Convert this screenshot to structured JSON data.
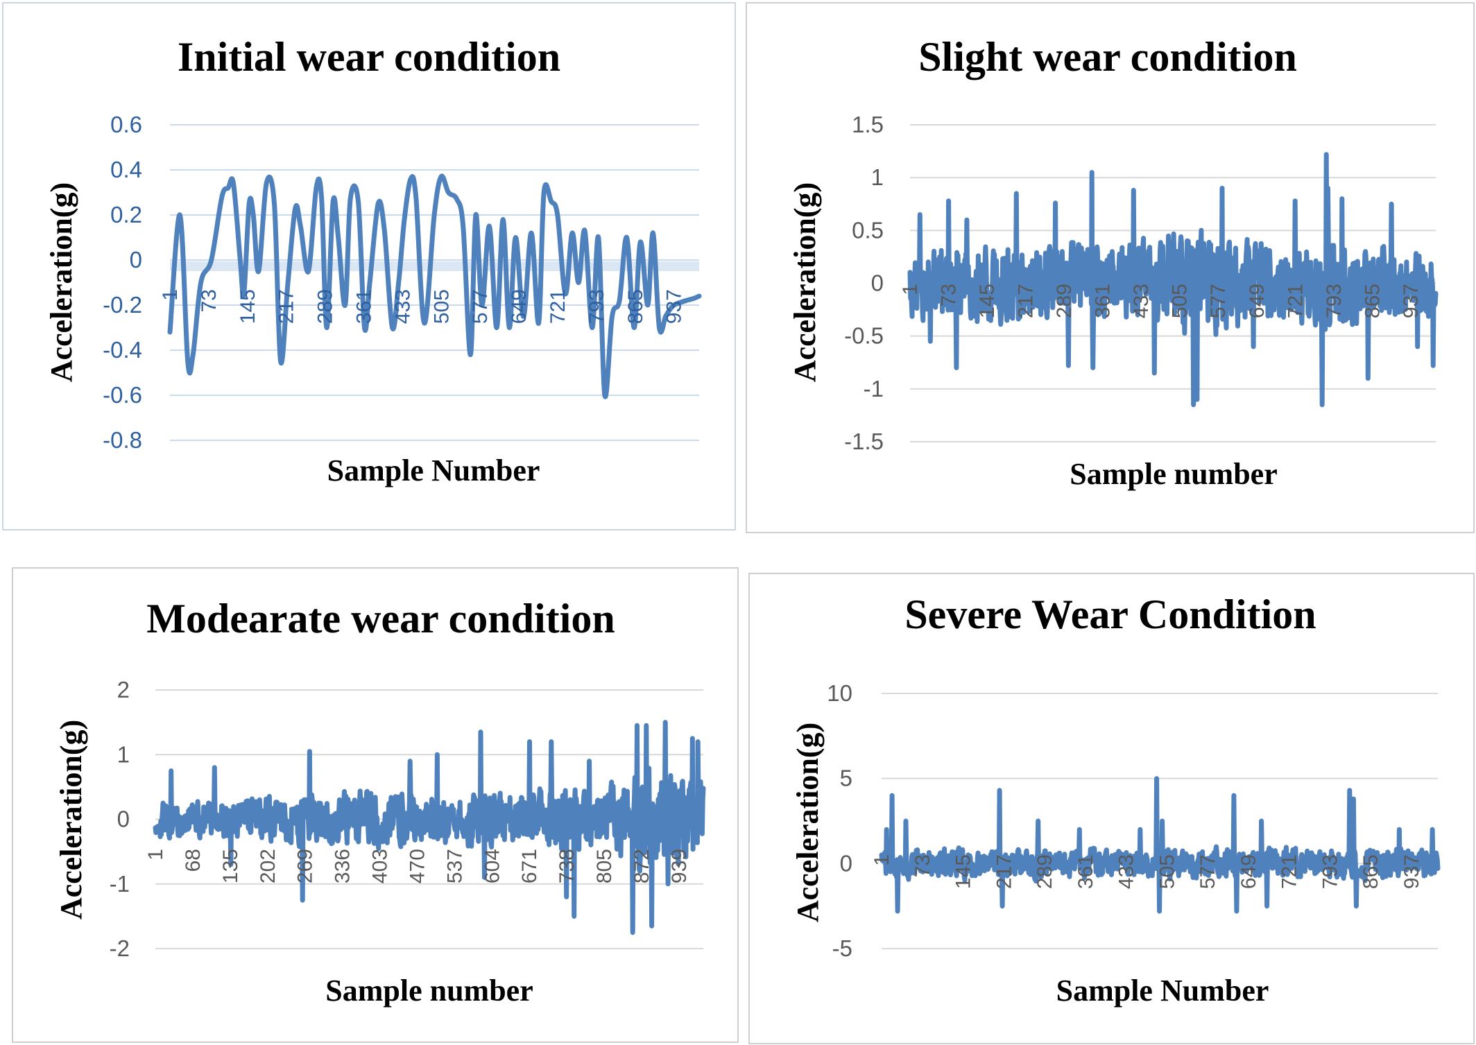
{
  "colors": {
    "series": "#4f81bd",
    "grid": "#d9d9d9",
    "grid_blue": "#c9dbf0",
    "tick_blue": "#2e5f9e",
    "tick_gray": "#595959",
    "zero_band": "#dbe7f5"
  },
  "chart_data": [
    {
      "type": "line",
      "title": "Initial wear condition",
      "xlabel": "Sample Number",
      "ylabel": "Acceleration(g)",
      "ylim": [
        -0.8,
        0.6
      ],
      "yticks": [
        "0.6",
        "0.4",
        "0.2",
        "0",
        "-0.2",
        "-0.4",
        "-0.6",
        "-0.8"
      ],
      "ytick_values": [
        0.6,
        0.4,
        0.2,
        0,
        -0.2,
        -0.4,
        -0.6,
        -0.8
      ],
      "xticks": [
        "1",
        "73",
        "145",
        "217",
        "289",
        "361",
        "433",
        "505",
        "577",
        "649",
        "721",
        "793",
        "865",
        "937"
      ],
      "xlim": [
        1,
        1010
      ],
      "grid": true,
      "legend": "none",
      "tick_color": "blue",
      "series": [
        {
          "style": "smooth",
          "x": [
            1,
            20,
            35,
            45,
            60,
            80,
            100,
            112,
            122,
            135,
            142,
            152,
            160,
            170,
            185,
            200,
            212,
            226,
            240,
            250,
            265,
            280,
            290,
            300,
            312,
            322,
            335,
            345,
            360,
            372,
            382,
            398,
            410,
            425,
            437,
            448,
            460,
            470,
            486,
            505,
            518,
            532,
            548,
            560,
            574,
            584,
            596,
            610,
            624,
            636,
            648,
            660,
            675,
            690,
            704,
            714,
            728,
            740,
            755,
            768,
            780,
            792,
            806,
            818,
            830,
            844,
            858,
            872,
            886,
            898,
            912,
            922,
            934,
            946,
            954,
            962,
            972,
            985,
            1000,
            1010
          ],
          "y": [
            -0.32,
            0.2,
            -0.45,
            -0.42,
            -0.1,
            0.0,
            0.28,
            0.32,
            0.34,
            0.0,
            -0.15,
            0.25,
            0.2,
            -0.05,
            0.34,
            0.25,
            -0.45,
            -0.1,
            0.23,
            0.15,
            -0.05,
            0.32,
            0.28,
            -0.3,
            0.26,
            0.1,
            -0.2,
            0.27,
            0.26,
            -0.3,
            -0.1,
            0.25,
            0.13,
            -0.3,
            -0.1,
            0.18,
            0.36,
            0.28,
            -0.28,
            0.2,
            0.37,
            0.3,
            0.27,
            0.15,
            -0.42,
            0.2,
            -0.2,
            0.15,
            -0.3,
            0.18,
            -0.3,
            0.1,
            -0.25,
            0.12,
            -0.28,
            0.3,
            0.26,
            0.2,
            -0.15,
            0.12,
            -0.1,
            0.13,
            -0.3,
            0.1,
            -0.6,
            -0.25,
            -0.18,
            0.1,
            -0.3,
            0.08,
            -0.2,
            0.12,
            -0.3,
            -0.25,
            -0.22,
            -0.2,
            -0.19,
            -0.18,
            -0.17,
            -0.16
          ]
        }
      ]
    },
    {
      "type": "line",
      "title": "Slight wear condition",
      "xlabel": "Sample number",
      "ylabel": "Acceleration(g)",
      "ylim": [
        -1.5,
        1.5
      ],
      "yticks": [
        "1.5",
        "1",
        "0.5",
        "0",
        "-0.5",
        "-1",
        "-1.5"
      ],
      "ytick_values": [
        1.5,
        1,
        0.5,
        0,
        -0.5,
        -1,
        -1.5
      ],
      "xticks": [
        "1",
        "73",
        "145",
        "217",
        "289",
        "361",
        "433",
        "505",
        "577",
        "649",
        "721",
        "793",
        "865",
        "937"
      ],
      "xlim": [
        1,
        1010
      ],
      "grid": true,
      "legend": "none",
      "tick_color": "gray",
      "series": [
        {
          "style": "noise",
          "n": 1010,
          "seed": 17,
          "env_x": [
            1,
            200,
            400,
            500,
            560,
            620,
            700,
            800,
            860,
            920,
            1010
          ],
          "env_y": [
            0.45,
            0.5,
            0.45,
            0.55,
            0.7,
            0.55,
            0.45,
            0.6,
            0.5,
            0.45,
            0.4
          ],
          "spikes_x": [
            20,
            40,
            75,
            90,
            110,
            205,
            280,
            305,
            350,
            352,
            430,
            470,
            545,
            552,
            600,
            660,
            740,
            792,
            800,
            803,
            830,
            880,
            925,
            975,
            1005
          ],
          "spikes_y": [
            0.65,
            -0.55,
            0.78,
            -0.8,
            0.6,
            0.85,
            0.76,
            -0.78,
            1.05,
            -0.8,
            0.88,
            -0.85,
            -1.15,
            -1.1,
            0.9,
            -0.6,
            0.78,
            -1.15,
            1.22,
            0.9,
            0.8,
            -0.9,
            0.75,
            -0.6,
            -0.78
          ]
        }
      ]
    },
    {
      "type": "line",
      "title": "Modearate wear condition",
      "xlabel": "Sample number",
      "ylabel": "Acceleration(g)",
      "ylim": [
        -2,
        2
      ],
      "yticks": [
        "2",
        "1",
        "0",
        "-1",
        "-2"
      ],
      "ytick_values": [
        2,
        1,
        0,
        -1,
        -2
      ],
      "xticks": [
        "1",
        "68",
        "135",
        "202",
        "269",
        "336",
        "403",
        "470",
        "537",
        "604",
        "671",
        "738",
        "805",
        "872",
        "939"
      ],
      "xlim": [
        1,
        1010
      ],
      "grid": true,
      "legend": "none",
      "tick_color": "gray",
      "series": [
        {
          "style": "noise",
          "n": 1010,
          "seed": 29,
          "env_x": [
            1,
            100,
            250,
            400,
            550,
            700,
            850,
            900,
            950,
            1010
          ],
          "env_y": [
            0.35,
            0.4,
            0.45,
            0.55,
            0.5,
            0.6,
            0.65,
            0.9,
            0.9,
            0.8
          ],
          "spikes_x": [
            30,
            110,
            140,
            272,
            285,
            470,
            520,
            600,
            607,
            690,
            730,
            758,
            772,
            800,
            880,
            888,
            905,
            915,
            940,
            945,
            990,
            1000
          ],
          "spikes_y": [
            0.75,
            0.8,
            -0.7,
            -1.25,
            1.05,
            0.9,
            1.0,
            1.35,
            -0.9,
            1.2,
            1.2,
            -1.2,
            -1.5,
            0.9,
            -1.75,
            1.45,
            1.45,
            -1.65,
            1.5,
            -1.0,
            1.25,
            1.2
          ]
        }
      ]
    },
    {
      "type": "line",
      "title": "Severe Wear Condition",
      "xlabel": "Sample Number",
      "ylabel": "Acceleration(g)",
      "ylim": [
        -5,
        10
      ],
      "yticks": [
        "10",
        "5",
        "0",
        "-5"
      ],
      "ytick_values": [
        10,
        5,
        0,
        -5
      ],
      "xticks": [
        "1",
        "73",
        "145",
        "217",
        "289",
        "361",
        "433",
        "505",
        "577",
        "649",
        "721",
        "793",
        "865",
        "937"
      ],
      "xlim": [
        1,
        1010
      ],
      "grid": true,
      "legend": "none",
      "tick_color": "gray",
      "series": [
        {
          "style": "noise",
          "n": 1010,
          "seed": 41,
          "env_x": [
            1,
            1010
          ],
          "env_y": [
            1.1,
            1.1
          ],
          "spikes_x": [
            10,
            20,
            30,
            45,
            215,
            220,
            285,
            360,
            470,
            500,
            505,
            510,
            640,
            645,
            690,
            700,
            850,
            857,
            862,
            940,
            1000
          ],
          "spikes_y": [
            2.0,
            4.0,
            -2.8,
            2.5,
            4.3,
            -2.5,
            2.5,
            2.0,
            2.0,
            5.0,
            -2.8,
            2.5,
            4.0,
            -2.8,
            2.5,
            -2.5,
            4.3,
            3.8,
            -2.5,
            2.0,
            2.0
          ]
        }
      ]
    }
  ]
}
